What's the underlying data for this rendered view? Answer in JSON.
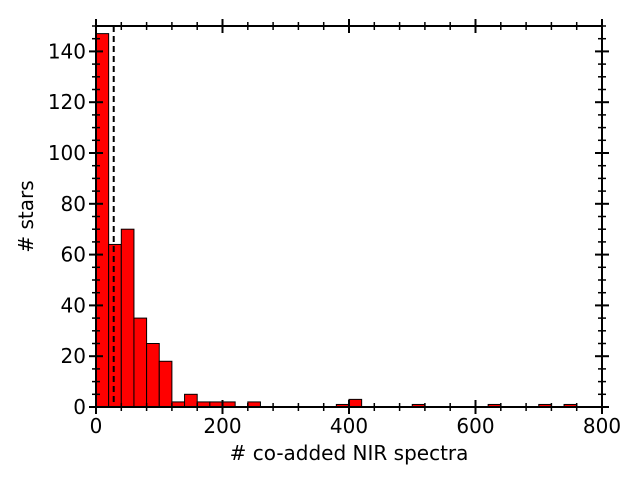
{
  "chart_data": {
    "type": "bar",
    "subtype": "histogram",
    "xlabel": "# co-added NIR spectra",
    "ylabel": "# stars",
    "xlim": [
      0,
      800
    ],
    "ylim": [
      0,
      150
    ],
    "x_ticks": [
      "0",
      "200",
      "400",
      "600",
      "800"
    ],
    "y_ticks": [
      "0",
      "20",
      "40",
      "60",
      "80",
      "100",
      "120",
      "140"
    ],
    "bin_width": 20,
    "bins": [
      {
        "x": 0,
        "count": 147
      },
      {
        "x": 20,
        "count": 64
      },
      {
        "x": 40,
        "count": 70
      },
      {
        "x": 60,
        "count": 35
      },
      {
        "x": 80,
        "count": 25
      },
      {
        "x": 100,
        "count": 18
      },
      {
        "x": 120,
        "count": 2
      },
      {
        "x": 140,
        "count": 5
      },
      {
        "x": 160,
        "count": 2
      },
      {
        "x": 180,
        "count": 2
      },
      {
        "x": 200,
        "count": 2
      },
      {
        "x": 240,
        "count": 2
      },
      {
        "x": 380,
        "count": 1
      },
      {
        "x": 400,
        "count": 3
      },
      {
        "x": 500,
        "count": 1
      },
      {
        "x": 620,
        "count": 1
      },
      {
        "x": 700,
        "count": 1
      },
      {
        "x": 740,
        "count": 1
      }
    ],
    "reference_line_x": 28,
    "bar_color": "#ff0000",
    "bar_edge_color": "#000000",
    "grid": false
  }
}
